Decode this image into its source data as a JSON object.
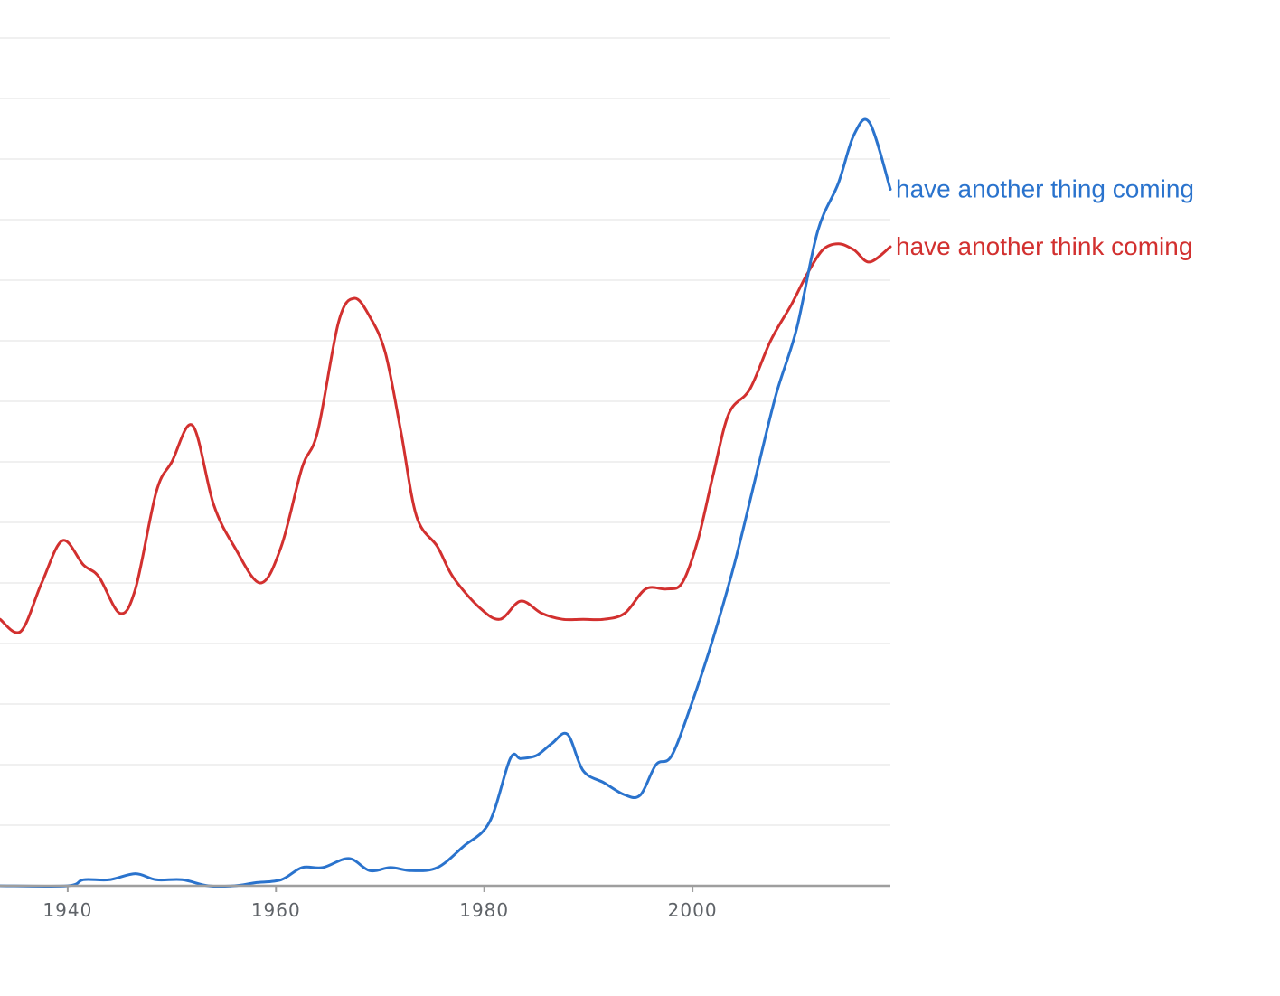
{
  "chart_data": {
    "type": "line",
    "title": "",
    "xlabel": "",
    "ylabel": "",
    "xlim": [
      1933.5,
      2019
    ],
    "ylim": [
      0,
      14
    ],
    "x_ticks": [
      1940,
      1960,
      1980,
      2000
    ],
    "grid": true,
    "legend": "inline labels at line ends (right)",
    "series": [
      {
        "name": "have another thing coming",
        "color": "#2a73cd",
        "points": [
          [
            1933.5,
            0.0
          ],
          [
            1940,
            0.0
          ],
          [
            1941.5,
            0.1
          ],
          [
            1944,
            0.1
          ],
          [
            1946.5,
            0.2
          ],
          [
            1948.5,
            0.1
          ],
          [
            1951,
            0.1
          ],
          [
            1953.5,
            0.0
          ],
          [
            1956,
            0.0
          ],
          [
            1958,
            0.05
          ],
          [
            1960.5,
            0.1
          ],
          [
            1962.5,
            0.3
          ],
          [
            1964.5,
            0.3
          ],
          [
            1967,
            0.45
          ],
          [
            1969,
            0.25
          ],
          [
            1971,
            0.3
          ],
          [
            1973,
            0.25
          ],
          [
            1975.5,
            0.3
          ],
          [
            1978,
            0.65
          ],
          [
            1980.5,
            1.05
          ],
          [
            1982.5,
            2.1
          ],
          [
            1983.5,
            2.1
          ],
          [
            1985,
            2.15
          ],
          [
            1986.5,
            2.35
          ],
          [
            1988,
            2.5
          ],
          [
            1989.5,
            1.9
          ],
          [
            1991.5,
            1.7
          ],
          [
            1993.5,
            1.5
          ],
          [
            1995,
            1.5
          ],
          [
            1996.5,
            2.0
          ],
          [
            1998,
            2.15
          ],
          [
            2000,
            3.05
          ],
          [
            2002,
            4.1
          ],
          [
            2004,
            5.3
          ],
          [
            2006,
            6.7
          ],
          [
            2008,
            8.1
          ],
          [
            2010,
            9.2
          ],
          [
            2012,
            10.8
          ],
          [
            2014,
            11.6
          ],
          [
            2015.5,
            12.4
          ],
          [
            2017,
            12.6
          ],
          [
            2019,
            11.5
          ]
        ]
      },
      {
        "name": "have another think coming",
        "color": "#d2302f",
        "points": [
          [
            1933.5,
            4.4
          ],
          [
            1935.5,
            4.2
          ],
          [
            1937.5,
            5.0
          ],
          [
            1939.5,
            5.7
          ],
          [
            1941.5,
            5.3
          ],
          [
            1943,
            5.1
          ],
          [
            1945,
            4.5
          ],
          [
            1946.5,
            4.9
          ],
          [
            1948.5,
            6.5
          ],
          [
            1950,
            7.0
          ],
          [
            1952,
            7.6
          ],
          [
            1954,
            6.3
          ],
          [
            1956,
            5.6
          ],
          [
            1958.5,
            5.0
          ],
          [
            1960.5,
            5.6
          ],
          [
            1962.5,
            6.9
          ],
          [
            1964,
            7.5
          ],
          [
            1966,
            9.3
          ],
          [
            1967.5,
            9.7
          ],
          [
            1969,
            9.4
          ],
          [
            1970.5,
            8.8
          ],
          [
            1972,
            7.5
          ],
          [
            1973.5,
            6.1
          ],
          [
            1975.5,
            5.6
          ],
          [
            1977,
            5.1
          ],
          [
            1979.5,
            4.6
          ],
          [
            1981.5,
            4.4
          ],
          [
            1983.5,
            4.7
          ],
          [
            1985.5,
            4.5
          ],
          [
            1987.5,
            4.4
          ],
          [
            1989.5,
            4.4
          ],
          [
            1991.5,
            4.4
          ],
          [
            1993.5,
            4.5
          ],
          [
            1995.5,
            4.9
          ],
          [
            1997.5,
            4.9
          ],
          [
            1999,
            5.0
          ],
          [
            2000.5,
            5.7
          ],
          [
            2002,
            6.8
          ],
          [
            2003.5,
            7.8
          ],
          [
            2005.5,
            8.2
          ],
          [
            2007.5,
            9.0
          ],
          [
            2009.5,
            9.6
          ],
          [
            2011,
            10.1
          ],
          [
            2012.5,
            10.5
          ],
          [
            2014,
            10.6
          ],
          [
            2015.5,
            10.5
          ],
          [
            2017,
            10.3
          ],
          [
            2019,
            10.55
          ]
        ]
      }
    ]
  }
}
